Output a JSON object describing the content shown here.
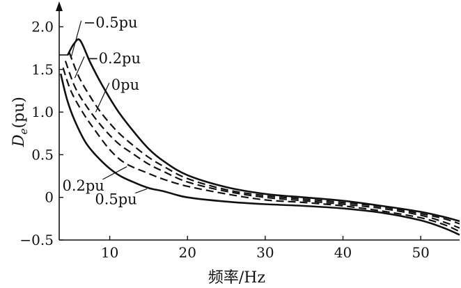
{
  "chart_data": {
    "type": "line",
    "title": "",
    "xlabel": "频率/Hz",
    "ylabel": "De(pu)",
    "ylabel_main": "D",
    "ylabel_sub": "e",
    "ylabel_unit": "(pu)",
    "xlim": [
      3.5,
      55
    ],
    "ylim": [
      -0.5,
      2.2
    ],
    "xticks": [
      10,
      20,
      30,
      40,
      50
    ],
    "yticks": [
      -0.5,
      0,
      0.5,
      1.0,
      1.5,
      2.0
    ],
    "xtick_labels": [
      "10",
      "20",
      "30",
      "40",
      "50"
    ],
    "ytick_labels": [
      "−0.5",
      "0",
      "0.5",
      "1.0",
      "1.5",
      "2.0"
    ],
    "grid": false,
    "legend": "none",
    "series": [
      {
        "name": "−0.5pu",
        "style": "solid",
        "points": [
          [
            4.6,
            1.67
          ],
          [
            5.4,
            1.8
          ],
          [
            6.2,
            1.84
          ],
          [
            7.5,
            1.58
          ],
          [
            9,
            1.32
          ],
          [
            11,
            1.02
          ],
          [
            13,
            0.78
          ],
          [
            15,
            0.57
          ],
          [
            17,
            0.42
          ],
          [
            20,
            0.26
          ],
          [
            25,
            0.12
          ],
          [
            30,
            0.04
          ],
          [
            35,
            0.0
          ],
          [
            40,
            -0.04
          ],
          [
            45,
            -0.1
          ],
          [
            50,
            -0.17
          ],
          [
            53,
            -0.23
          ],
          [
            55,
            -0.28
          ]
        ]
      },
      {
        "name": "−0.2pu",
        "style": "dash",
        "points": [
          [
            4.8,
            1.7
          ],
          [
            6,
            1.42
          ],
          [
            7.5,
            1.18
          ],
          [
            9,
            0.98
          ],
          [
            11,
            0.77
          ],
          [
            13,
            0.61
          ],
          [
            15,
            0.47
          ],
          [
            17,
            0.36
          ],
          [
            20,
            0.22
          ],
          [
            25,
            0.09
          ],
          [
            30,
            0.02
          ],
          [
            35,
            -0.02
          ],
          [
            40,
            -0.06
          ],
          [
            45,
            -0.11
          ],
          [
            50,
            -0.19
          ],
          [
            53,
            -0.25
          ],
          [
            55,
            -0.31
          ]
        ]
      },
      {
        "name": "0pu",
        "style": "dash",
        "points": [
          [
            4.3,
            1.6
          ],
          [
            5.5,
            1.3
          ],
          [
            7,
            1.07
          ],
          [
            9,
            0.83
          ],
          [
            11,
            0.64
          ],
          [
            13,
            0.51
          ],
          [
            15,
            0.39
          ],
          [
            17,
            0.3
          ],
          [
            20,
            0.18
          ],
          [
            25,
            0.07
          ],
          [
            30,
            0.0
          ],
          [
            35,
            -0.04
          ],
          [
            40,
            -0.08
          ],
          [
            45,
            -0.13
          ],
          [
            50,
            -0.21
          ],
          [
            53,
            -0.29
          ],
          [
            55,
            -0.36
          ]
        ]
      },
      {
        "name": "0.2pu",
        "style": "dash",
        "points": [
          [
            4,
            1.52
          ],
          [
            5,
            1.25
          ],
          [
            6.5,
            1.0
          ],
          [
            8,
            0.8
          ],
          [
            10,
            0.56
          ],
          [
            12,
            0.4
          ],
          [
            15,
            0.28
          ],
          [
            17,
            0.21
          ],
          [
            20,
            0.13
          ],
          [
            25,
            0.04
          ],
          [
            30,
            -0.03
          ],
          [
            35,
            -0.06
          ],
          [
            40,
            -0.1
          ],
          [
            45,
            -0.16
          ],
          [
            50,
            -0.24
          ],
          [
            53,
            -0.32
          ],
          [
            55,
            -0.4
          ]
        ]
      },
      {
        "name": "0.5pu",
        "style": "solid",
        "points": [
          [
            3.7,
            1.45
          ],
          [
            4.5,
            1.15
          ],
          [
            5.5,
            0.9
          ],
          [
            7,
            0.63
          ],
          [
            9,
            0.42
          ],
          [
            11,
            0.27
          ],
          [
            13,
            0.18
          ],
          [
            15,
            0.11
          ],
          [
            17,
            0.07
          ],
          [
            20,
            0.0
          ],
          [
            25,
            -0.05
          ],
          [
            30,
            -0.08
          ],
          [
            35,
            -0.1
          ],
          [
            40,
            -0.13
          ],
          [
            45,
            -0.18
          ],
          [
            50,
            -0.27
          ],
          [
            53,
            -0.36
          ],
          [
            55,
            -0.44
          ]
        ]
      }
    ],
    "annotations": [
      {
        "text": "−0.5pu",
        "at": [
          6.6,
          1.99
        ],
        "points_to": [
          5.0,
          1.63
        ]
      },
      {
        "text": "−0.2pu",
        "at": [
          7.0,
          1.57
        ],
        "points_to": [
          5.5,
          1.4
        ]
      },
      {
        "text": "0pu",
        "at": [
          10.2,
          1.26
        ],
        "points_to": [
          8.2,
          1.0
        ]
      },
      {
        "text": "0.2pu",
        "at": [
          3.9,
          0.08
        ],
        "points_to": [
          12.2,
          0.36
        ]
      },
      {
        "text": "0.5pu",
        "at": [
          8.1,
          -0.08
        ],
        "points_to": [
          14.8,
          0.1
        ]
      }
    ]
  }
}
